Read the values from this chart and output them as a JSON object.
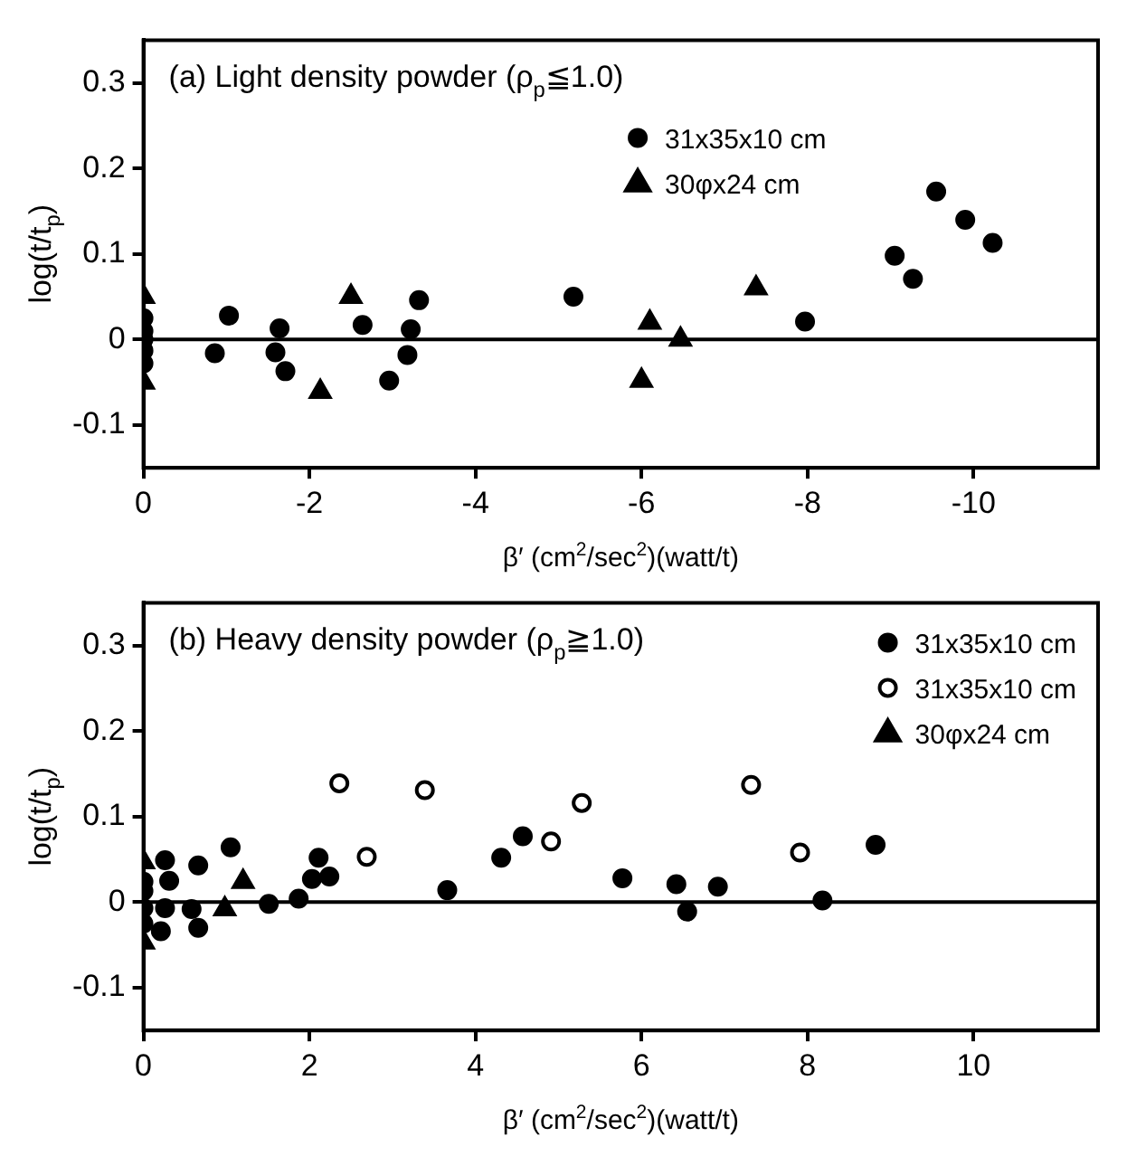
{
  "chart_data": [
    {
      "type": "scatter",
      "title": "(a) Light density powder (ρ$_{p}$≦1.0)",
      "xlabel": "β′ (cm$^{2}$/sec$^{2}$)(watt/t)",
      "ylabel": "log(t/t$_{p}$)",
      "xlim": [
        0,
        -11.5
      ],
      "xticks": [
        0,
        -2,
        -4,
        -6,
        -8,
        -10
      ],
      "ylim": [
        -0.15,
        0.35
      ],
      "yticks": [
        -0.1,
        0,
        0.1,
        0.2,
        0.3
      ],
      "grid": false,
      "legend": "top",
      "ref_lines": [
        {
          "axis": "y",
          "value": 0,
          "color": "#000000"
        }
      ],
      "series": [
        {
          "name": "31x35x10 cm",
          "color": "#000000",
          "marker": "circle",
          "x": [
            0,
            0,
            0,
            0,
            0,
            -0.86,
            -1.03,
            -1.59,
            -1.64,
            -1.71,
            -2.64,
            -2.96,
            -3.18,
            -3.22,
            -3.32,
            -5.18,
            -7.97,
            -9.05,
            -9.27,
            -9.55,
            -9.9,
            -10.23
          ],
          "values": [
            0.025,
            0.01,
            0,
            -0.013,
            -0.028,
            -0.016,
            0.028,
            -0.015,
            0.013,
            -0.037,
            0.017,
            -0.048,
            -0.018,
            0.012,
            0.046,
            0.05,
            0.021,
            0.098,
            0.071,
            0.173,
            0.14,
            0.113
          ]
        },
        {
          "name": "30φx24 cm",
          "color": "#000000",
          "marker": "triangle",
          "x": [
            0,
            0,
            -2.13,
            -2.5,
            -6.0,
            -6.1,
            -6.47,
            -7.38
          ],
          "values": [
            0.05,
            -0.05,
            -0.061,
            0.05,
            -0.048,
            0.02,
            0,
            0.06
          ]
        }
      ]
    },
    {
      "type": "scatter",
      "title": "(b) Heavy density powder (ρ$_{p}$≧1.0)",
      "xlabel": "β′ (cm$^{2}$/sec$^{2}$)(watt/t)",
      "ylabel": "log(t/t$_{p}$)",
      "xlim": [
        0,
        11.5
      ],
      "xticks": [
        0,
        2,
        4,
        6,
        8,
        10
      ],
      "ylim": [
        -0.15,
        0.35
      ],
      "yticks": [
        -0.1,
        0,
        0.1,
        0.2,
        0.3
      ],
      "grid": false,
      "legend": "top right",
      "ref_lines": [
        {
          "axis": "y",
          "value": 0,
          "color": "#000000"
        }
      ],
      "series": [
        {
          "name": "31x35x10 cm",
          "color": "#000000",
          "marker": "circle",
          "x": [
            0,
            0,
            0,
            0,
            0.26,
            0.31,
            0.26,
            0.21,
            0.58,
            0.66,
            0.66,
            1.05,
            1.51,
            1.87,
            2.03,
            2.11,
            2.24,
            3.66,
            4.31,
            4.57,
            5.77,
            6.42,
            6.55,
            6.92,
            8.18,
            8.82
          ],
          "values": [
            0.013,
            0.024,
            -0.007,
            -0.025,
            0.049,
            0.025,
            -0.007,
            -0.034,
            -0.008,
            0.043,
            -0.03,
            0.064,
            -0.002,
            0.004,
            0.027,
            0.052,
            0.03,
            0.014,
            0.052,
            0.077,
            0.028,
            0.021,
            -0.011,
            0.018,
            0.002,
            0.067
          ]
        },
        {
          "name": "31x35x10 cm",
          "color": "#ffffff",
          "marker": "circle",
          "x": [
            2.36,
            2.69,
            3.39,
            4.91,
            5.28,
            7.32,
            7.91
          ],
          "values": [
            0.139,
            0.053,
            0.131,
            0.071,
            0.116,
            0.137,
            0.058
          ]
        },
        {
          "name": "30φx24 cm",
          "color": "#000000",
          "marker": "triangle",
          "x": [
            0,
            0,
            0.98,
            1.2
          ],
          "values": [
            0.047,
            -0.047,
            -0.008,
            0.024
          ]
        }
      ]
    }
  ]
}
